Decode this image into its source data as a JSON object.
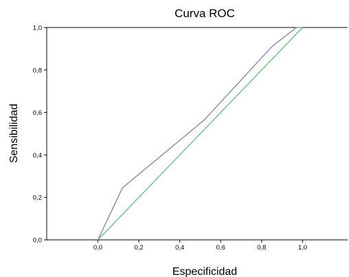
{
  "chart_data": {
    "type": "line",
    "title": "Curva ROC",
    "xlabel": "Especificidad",
    "ylabel": "Sensibilidad",
    "xlim": [
      -0.25,
      1.22
    ],
    "ylim": [
      0,
      1
    ],
    "x_ticks": [
      "0,0",
      "0,2",
      "0,4",
      "0,6",
      "0,8",
      "1,0"
    ],
    "x_tick_values": [
      0,
      0.2,
      0.4,
      0.6,
      0.8,
      1.0
    ],
    "y_ticks": [
      "0,0",
      "0,2",
      "0,4",
      "0,6",
      "0,8",
      "1,0"
    ],
    "y_tick_values": [
      0,
      0.2,
      0.4,
      0.6,
      0.8,
      1.0
    ],
    "grid": false,
    "series": [
      {
        "color": "#7b7fb8",
        "x": [
          0.0,
          0.12,
          0.52,
          0.85,
          0.97,
          1.0
        ],
        "y": [
          0.0,
          0.245,
          0.565,
          0.91,
          1.0,
          1.0
        ]
      },
      {
        "color": "#5ec07a",
        "x": [
          0.0,
          1.0
        ],
        "y": [
          0.0,
          1.0
        ]
      }
    ]
  }
}
